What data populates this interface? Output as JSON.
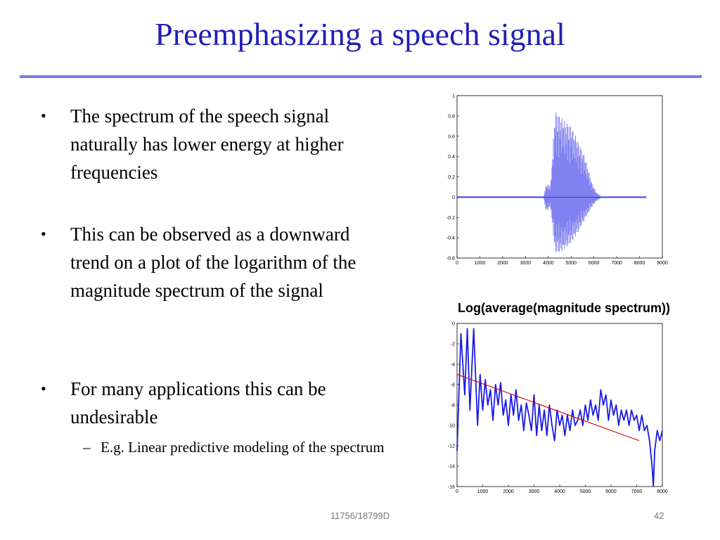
{
  "slide": {
    "title": "Preemphasizing a speech signal",
    "bullets": [
      "The spectrum of the speech signal naturally has lower energy at higher frequencies",
      "This can be observed as a downward trend on a plot of the logarithm of the magnitude spectrum of the signal",
      "For many applications this can be undesirable"
    ],
    "sub_bullet": "E.g. Linear predictive modeling of the spectrum",
    "footer_course": "11756/18799D",
    "footer_page": "42"
  },
  "colors": {
    "title": "#1f1fb8",
    "rule": "#7d7de8",
    "signal": "#1a1ae6",
    "trend": "#cc0000"
  },
  "chart_data": [
    {
      "type": "line",
      "title": "",
      "xlim": [
        0,
        9000
      ],
      "ylim": [
        -0.6,
        1
      ],
      "xticks": [
        "0",
        "1000",
        "2000",
        "3000",
        "4000",
        "5000",
        "6000",
        "7000",
        "8000",
        "9000"
      ],
      "yticks": [
        "1",
        "0.8",
        "0.6",
        "0.4",
        "0.2",
        "0",
        "-0.2",
        "-0.4",
        "-0.6"
      ],
      "series": [
        {
          "envelope": {
            "x": [
              0,
              3800,
              3900,
              4100,
              4300,
              4500,
              4700,
              5000,
              5300,
              5600,
              5900,
              6100,
              6300,
              8300
            ],
            "upper": [
              0.01,
              0.01,
              0.12,
              0.12,
              0.85,
              0.8,
              0.75,
              0.7,
              0.55,
              0.4,
              0.15,
              0.05,
              0.01,
              0.01
            ],
            "lower": [
              -0.01,
              -0.01,
              -0.14,
              -0.1,
              -0.55,
              -0.55,
              -0.52,
              -0.45,
              -0.35,
              -0.22,
              -0.1,
              -0.04,
              -0.01,
              -0.01
            ]
          }
        }
      ]
    },
    {
      "type": "line",
      "title": "Log(average(magnitude spectrum))",
      "xlim": [
        0,
        8000
      ],
      "ylim": [
        -16,
        0
      ],
      "xticks": [
        "0",
        "1000",
        "2000",
        "3000",
        "4000",
        "5000",
        "6000",
        "7000",
        "8000"
      ],
      "yticks": [
        "0",
        "-2",
        "-4",
        "-6",
        "-8",
        "-10",
        "-12",
        "-14",
        "-16"
      ],
      "series": [
        {
          "x": [
            0,
            150,
            300,
            400,
            500,
            650,
            800,
            900,
            1000,
            1100,
            1200,
            1300,
            1400,
            1500,
            1600,
            1700,
            1800,
            1900,
            2000,
            2100,
            2200,
            2300,
            2400,
            2500,
            2600,
            2700,
            2800,
            2900,
            3000,
            3100,
            3200,
            3300,
            3400,
            3500,
            3600,
            3700,
            3800,
            3900,
            4000,
            4100,
            4200,
            4300,
            4400,
            4500,
            4600,
            4700,
            4800,
            4900,
            5000,
            5100,
            5200,
            5300,
            5400,
            5500,
            5600,
            5700,
            5800,
            5900,
            6000,
            6100,
            6200,
            6300,
            6400,
            6500,
            6600,
            6700,
            6800,
            6900,
            7000,
            7100,
            7200,
            7300,
            7400,
            7500,
            7600,
            7650,
            7700,
            7800,
            7900,
            8000
          ],
          "y": [
            -12.5,
            -1,
            -7,
            -0.5,
            -8.5,
            -0.5,
            -10,
            -5,
            -8.5,
            -5.5,
            -8,
            -6.5,
            -9.5,
            -6,
            -8,
            -5.8,
            -9,
            -7.5,
            -10,
            -7,
            -9,
            -6.5,
            -9.5,
            -8,
            -10.5,
            -7.8,
            -9,
            -10.5,
            -7,
            -11,
            -8,
            -10.5,
            -8.5,
            -11,
            -8,
            -10,
            -11.5,
            -8.5,
            -10,
            -9,
            -11,
            -9,
            -10.5,
            -8.5,
            -10,
            -9.5,
            -8.5,
            -10,
            -8,
            -9.5,
            -7.5,
            -9,
            -8,
            -9.5,
            -6.5,
            -8,
            -7,
            -9.5,
            -7.5,
            -9,
            -8,
            -10,
            -8.5,
            -9.5,
            -8.5,
            -10,
            -8.5,
            -9.5,
            -9,
            -10.5,
            -9,
            -10.5,
            -10,
            -11.5,
            -14,
            -16,
            -12.5,
            -10.5,
            -11.5,
            -10.5
          ]
        },
        {
          "x": [
            0,
            7100
          ],
          "y": [
            -5,
            -11.5
          ]
        }
      ]
    }
  ]
}
